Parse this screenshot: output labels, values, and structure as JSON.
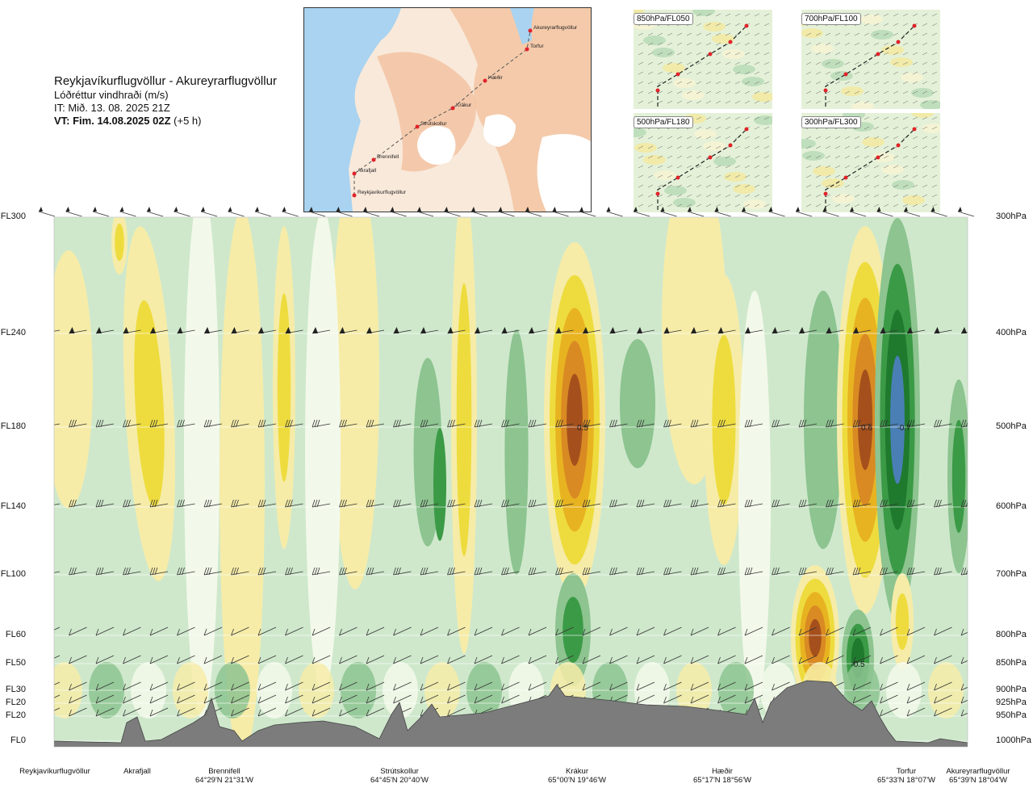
{
  "header": {
    "route": "Reykjavíkurflugvöllur - Akureyrarflugvöllur",
    "variable": "Lóðréttur vindhraði (m/s)",
    "issue_time": "IT: Mið. 13. 08. 2025 21Z",
    "valid_time_bold": "VT: Fim. 14.08.2025 02Z",
    "valid_time_suffix": " (+5 h)"
  },
  "map": {
    "waypoints": [
      "Akureyrarflugvöllur",
      "Torfur",
      "Hæðir",
      "Krákur",
      "Strútskollur",
      "Brennifell",
      "Akrafjall",
      "Reykjavíkurflugvöllur"
    ],
    "colors": {
      "sea": "#a9d3f0",
      "land_low": "#f9e9da",
      "land_high": "#f0b48c",
      "ice": "#ffffff",
      "route": "#555555",
      "point": "#e0232a"
    }
  },
  "thumbnails": [
    {
      "label": "850hPa/FL050"
    },
    {
      "label": "700hPa/FL100"
    },
    {
      "label": "500hPa/FL180"
    },
    {
      "label": "300hPa/FL300"
    }
  ],
  "chart_data": {
    "type": "heatmap",
    "title": "Lóðréttur vindhraði (m/s)",
    "xlabel": "",
    "ylabel": "",
    "y_left_ticks": [
      "FL300",
      "FL240",
      "FL180",
      "FL140",
      "FL100",
      "FL60",
      "FL50",
      "FL30",
      "FL20",
      "FL20",
      "FL0"
    ],
    "y_right_ticks": [
      "300hPa",
      "400hPa",
      "500hPa",
      "600hPa",
      "700hPa",
      "800hPa",
      "850hPa",
      "900hPa",
      "925hPa",
      "950hPa",
      "1000hPa"
    ],
    "pressure_levels_hPa": [
      300,
      400,
      500,
      600,
      700,
      800,
      850,
      900,
      925,
      950,
      1000
    ],
    "ylim_hPa": [
      1000,
      300
    ],
    "stations": [
      {
        "name": "Reykjavíkurflugvöllur",
        "coord": ""
      },
      {
        "name": "Akrafjall",
        "coord": ""
      },
      {
        "name": "Brennifell",
        "coord": "64°29'N 21°31'W"
      },
      {
        "name": "Strútskollur",
        "coord": "64°45'N 20°40'W"
      },
      {
        "name": "Krákur",
        "coord": "65°00'N 19°46'W"
      },
      {
        "name": "Hæðir",
        "coord": "65°17'N 18°56'W"
      },
      {
        "name": "Torfur",
        "coord": "65°33'N 18°07'W"
      },
      {
        "name": "Akureyrarflugvöllur",
        "coord": "65°39'N 18°04'W"
      }
    ],
    "labels": [
      {
        "text": "0.5",
        "level_hPa": 500
      },
      {
        "text": "0.6",
        "level_hPa": 500
      },
      {
        "text": "-0.7",
        "level_hPa": 500
      },
      {
        "text": "-0.5",
        "level_hPa": 850
      }
    ],
    "colors": {
      "down_strong": "#4a7fb5",
      "down_3": "#1f7a2e",
      "down_2": "#3b9a46",
      "down_1": "#8dc490",
      "down_0": "#cfe8cc",
      "neutral": "#f3f9ea",
      "up_0": "#f6eca8",
      "up_1": "#eedc3e",
      "up_2": "#e8b320",
      "up_3": "#d98a23",
      "up_4": "#a5501c",
      "terrain": "#7c7c7c"
    }
  }
}
